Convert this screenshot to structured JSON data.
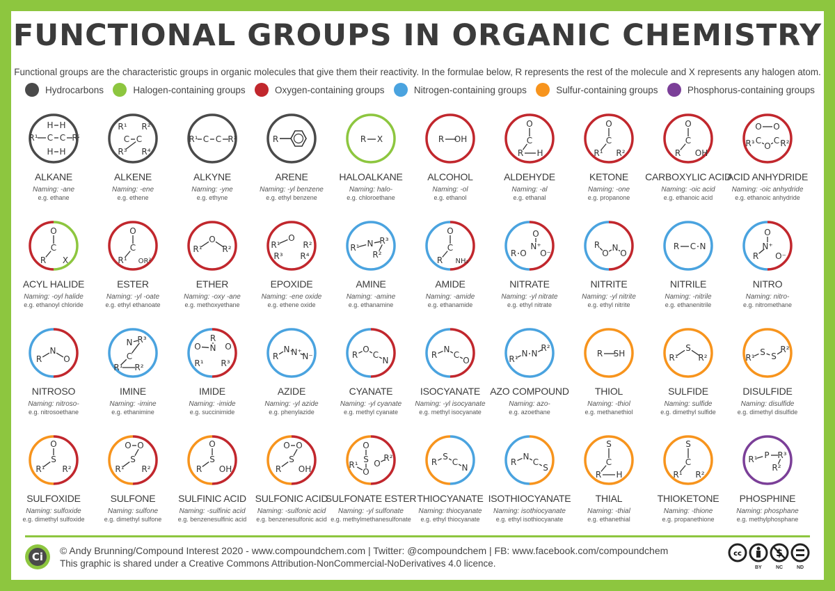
{
  "title": "FUNCTIONAL GROUPS IN ORGANIC CHEMISTRY",
  "intro": "Functional groups are the characteristic groups in organic molecules that give them their reactivity. In the formulae below, R represents the rest of the molecule and X represents any halogen atom.",
  "legend": [
    {
      "label": "Hydrocarbons",
      "color": "#4a4a4a"
    },
    {
      "label": "Halogen-containing groups",
      "color": "#8dc63f"
    },
    {
      "label": "Oxygen-containing groups",
      "color": "#c1272d"
    },
    {
      "label": "Nitrogen-containing groups",
      "color": "#4aa3df"
    },
    {
      "label": "Sulfur-containing groups",
      "color": "#f7941d"
    },
    {
      "label": "Phosphorus-containing groups",
      "color": "#7b3f98"
    }
  ],
  "groups": [
    {
      "name": "ALKANE",
      "naming": "Naming: -ane",
      "example": "e.g. ethane",
      "colors": [
        "#4a4a4a"
      ],
      "icon": "alkane-structure-icon"
    },
    {
      "name": "ALKENE",
      "naming": "Naming: -ene",
      "example": "e.g. ethene",
      "colors": [
        "#4a4a4a"
      ],
      "icon": "alkene-structure-icon"
    },
    {
      "name": "ALKYNE",
      "naming": "Naming: -yne",
      "example": "e.g. ethyne",
      "colors": [
        "#4a4a4a"
      ],
      "icon": "alkyne-structure-icon"
    },
    {
      "name": "ARENE",
      "naming": "Naming: -yl benzene",
      "example": "e.g. ethyl benzene",
      "colors": [
        "#4a4a4a"
      ],
      "icon": "arene-structure-icon"
    },
    {
      "name": "HALOALKANE",
      "naming": "Naming: halo-",
      "example": "e.g. chloroethane",
      "colors": [
        "#8dc63f"
      ],
      "icon": "haloalkane-structure-icon"
    },
    {
      "name": "ALCOHOL",
      "naming": "Naming: -ol",
      "example": "e.g. ethanol",
      "colors": [
        "#c1272d"
      ],
      "icon": "alcohol-structure-icon"
    },
    {
      "name": "ALDEHYDE",
      "naming": "Naming: -al",
      "example": "e.g. ethanal",
      "colors": [
        "#c1272d"
      ],
      "icon": "aldehyde-structure-icon"
    },
    {
      "name": "KETONE",
      "naming": "Naming: -one",
      "example": "e.g. propanone",
      "colors": [
        "#c1272d"
      ],
      "icon": "ketone-structure-icon"
    },
    {
      "name": "CARBOXYLIC ACID",
      "naming": "Naming: -oic acid",
      "example": "e.g. ethanoic acid",
      "colors": [
        "#c1272d"
      ],
      "icon": "carboxylic-acid-structure-icon"
    },
    {
      "name": "ACID ANHYDRIDE",
      "naming": "Naming: -oic anhydride",
      "example": "e.g. ethanoic anhydride",
      "colors": [
        "#c1272d"
      ],
      "icon": "acid-anhydride-structure-icon"
    },
    {
      "name": "ACYL HALIDE",
      "naming": "Naming: -oyl halide",
      "example": "e.g. ethanoyl chloride",
      "colors": [
        "#c1272d",
        "#8dc63f"
      ],
      "icon": "acyl-halide-structure-icon"
    },
    {
      "name": "ESTER",
      "naming": "Naming: -yl -oate",
      "example": "e.g. ethyl ethanoate",
      "colors": [
        "#c1272d"
      ],
      "icon": "ester-structure-icon"
    },
    {
      "name": "ETHER",
      "naming": "Naming: -oxy -ane",
      "example": "e.g. methoxyethane",
      "colors": [
        "#c1272d"
      ],
      "icon": "ether-structure-icon"
    },
    {
      "name": "EPOXIDE",
      "naming": "Naming: -ene oxide",
      "example": "e.g. ethene oxide",
      "colors": [
        "#c1272d"
      ],
      "icon": "epoxide-structure-icon"
    },
    {
      "name": "AMINE",
      "naming": "Naming: -amine",
      "example": "e.g. ethanamine",
      "colors": [
        "#4aa3df"
      ],
      "icon": "amine-structure-icon"
    },
    {
      "name": "AMIDE",
      "naming": "Naming: -amide",
      "example": "e.g. ethanamide",
      "colors": [
        "#4aa3df",
        "#c1272d"
      ],
      "icon": "amide-structure-icon"
    },
    {
      "name": "NITRATE",
      "naming": "Naming: -yl nitrate",
      "example": "e.g. ethyl nitrate",
      "colors": [
        "#4aa3df",
        "#c1272d"
      ],
      "icon": "nitrate-structure-icon"
    },
    {
      "name": "NITRITE",
      "naming": "Naming: -yl nitrite",
      "example": "e.g. ethyl nitrite",
      "colors": [
        "#4aa3df",
        "#c1272d"
      ],
      "icon": "nitrite-structure-icon"
    },
    {
      "name": "NITRILE",
      "naming": "Naming: -nitrile",
      "example": "e.g. ethanenitrile",
      "colors": [
        "#4aa3df"
      ],
      "icon": "nitrile-structure-icon"
    },
    {
      "name": "NITRO",
      "naming": "Naming: nitro-",
      "example": "e.g. nitromethane",
      "colors": [
        "#4aa3df",
        "#c1272d"
      ],
      "icon": "nitro-structure-icon"
    },
    {
      "name": "NITROSO",
      "naming": "Naming: nitroso-",
      "example": "e.g. nitrosoethane",
      "colors": [
        "#4aa3df",
        "#c1272d"
      ],
      "icon": "nitroso-structure-icon"
    },
    {
      "name": "IMINE",
      "naming": "Naming: -imine",
      "example": "e.g. ethanimine",
      "colors": [
        "#4aa3df"
      ],
      "icon": "imine-structure-icon"
    },
    {
      "name": "IMIDE",
      "naming": "Naming: -imide",
      "example": "e.g. succinimide",
      "colors": [
        "#4aa3df",
        "#c1272d"
      ],
      "icon": "imide-structure-icon"
    },
    {
      "name": "AZIDE",
      "naming": "Naming: -yl azide",
      "example": "e.g. phenylazide",
      "colors": [
        "#4aa3df"
      ],
      "icon": "azide-structure-icon"
    },
    {
      "name": "CYANATE",
      "naming": "Naming: -yl cyanate",
      "example": "e.g. methyl cyanate",
      "colors": [
        "#4aa3df",
        "#c1272d"
      ],
      "icon": "cyanate-structure-icon"
    },
    {
      "name": "ISOCYANATE",
      "naming": "Naming: -yl isocyanate",
      "example": "e.g. methyl isocyanate",
      "colors": [
        "#4aa3df",
        "#c1272d"
      ],
      "icon": "isocyanate-structure-icon"
    },
    {
      "name": "AZO COMPOUND",
      "naming": "Naming: azo-",
      "example": "e.g. azoethane",
      "colors": [
        "#4aa3df"
      ],
      "icon": "azo-compound-structure-icon"
    },
    {
      "name": "THIOL",
      "naming": "Naming: -thiol",
      "example": "e.g. methanethiol",
      "colors": [
        "#f7941d"
      ],
      "icon": "thiol-structure-icon"
    },
    {
      "name": "SULFIDE",
      "naming": "Naming: sulfide",
      "example": "e.g. dimethyl sulfide",
      "colors": [
        "#f7941d"
      ],
      "icon": "sulfide-structure-icon"
    },
    {
      "name": "DISULFIDE",
      "naming": "Naming: disulfide",
      "example": "e.g. dimethyl disulfide",
      "colors": [
        "#f7941d"
      ],
      "icon": "disulfide-structure-icon"
    },
    {
      "name": "SULFOXIDE",
      "naming": "Naming: sulfoxide",
      "example": "e.g. dimethyl sulfoxide",
      "colors": [
        "#f7941d",
        "#c1272d"
      ],
      "icon": "sulfoxide-structure-icon"
    },
    {
      "name": "SULFONE",
      "naming": "Naming: sulfone",
      "example": "e.g. dimethyl sulfone",
      "colors": [
        "#f7941d",
        "#c1272d"
      ],
      "icon": "sulfone-structure-icon"
    },
    {
      "name": "SULFINIC ACID",
      "naming": "Naming: -sulfinic acid",
      "example": "e.g. benzenesulfinic acid",
      "colors": [
        "#f7941d",
        "#c1272d"
      ],
      "icon": "sulfinic-acid-structure-icon"
    },
    {
      "name": "SULFONIC ACID",
      "naming": "Naming: -sulfonic acid",
      "example": "e.g. benzenesulfonic acid",
      "colors": [
        "#f7941d",
        "#c1272d"
      ],
      "icon": "sulfonic-acid-structure-icon"
    },
    {
      "name": "SULFONATE ESTER",
      "naming": "Naming: -yl sulfonate",
      "example": "e.g. methylmethanesulfonate",
      "colors": [
        "#f7941d",
        "#c1272d"
      ],
      "icon": "sulfonate-ester-structure-icon"
    },
    {
      "name": "THIOCYANATE",
      "naming": "Naming: thiocyanate",
      "example": "e.g. ethyl thiocyanate",
      "colors": [
        "#f7941d",
        "#4aa3df"
      ],
      "icon": "thiocyanate-structure-icon"
    },
    {
      "name": "ISOTHIOCYANATE",
      "naming": "Naming: isothiocyanate",
      "example": "e.g. ethyl isothiocyanate",
      "colors": [
        "#4aa3df",
        "#f7941d"
      ],
      "icon": "isothiocyanate-structure-icon"
    },
    {
      "name": "THIAL",
      "naming": "Naming: -thial",
      "example": "e.g. ethanethial",
      "colors": [
        "#f7941d"
      ],
      "icon": "thial-structure-icon"
    },
    {
      "name": "THIOKETONE",
      "naming": "Naming: -thione",
      "example": "e.g. propanethione",
      "colors": [
        "#f7941d"
      ],
      "icon": "thioketone-structure-icon"
    },
    {
      "name": "PHOSPHINE",
      "naming": "Naming: phosphane",
      "example": "e.g. methylphosphane",
      "colors": [
        "#7b3f98"
      ],
      "icon": "phosphine-structure-icon"
    }
  ],
  "structures": [
    [
      [
        "R¹",
        8,
        36
      ],
      [
        "C",
        32,
        36
      ],
      [
        "C",
        50,
        36
      ],
      [
        "R²",
        70,
        36
      ],
      [
        "H",
        32,
        18
      ],
      [
        "H",
        50,
        18
      ],
      [
        "H",
        32,
        56
      ],
      [
        "H",
        50,
        56
      ]
    ],
    [
      [
        "R¹",
        22,
        20
      ],
      [
        "R²",
        56,
        20
      ],
      [
        "C",
        28,
        38
      ],
      [
        "C",
        46,
        38
      ],
      [
        "R³",
        22,
        56
      ],
      [
        "R⁴",
        56,
        56
      ]
    ],
    [
      [
        "R¹",
        10,
        38
      ],
      [
        "C",
        28,
        38
      ],
      [
        "C",
        46,
        38
      ],
      [
        "R²",
        66,
        38
      ]
    ],
    [
      [
        "R",
        14,
        38
      ]
    ],
    [
      [
        "R",
        26,
        38
      ],
      [
        "X",
        50,
        38
      ]
    ],
    [
      [
        "R",
        24,
        38
      ],
      [
        "OH",
        52,
        38
      ]
    ],
    [
      [
        "O",
        37,
        16
      ],
      [
        "C",
        37,
        40
      ],
      [
        "R",
        24,
        58
      ],
      [
        "H",
        52,
        58
      ]
    ],
    [
      [
        "O",
        37,
        16
      ],
      [
        "C",
        37,
        40
      ],
      [
        "R¹",
        22,
        58
      ],
      [
        "R²",
        54,
        58
      ]
    ],
    [
      [
        "O",
        37,
        16
      ],
      [
        "C",
        37,
        40
      ],
      [
        "R",
        22,
        58
      ],
      [
        "OH",
        56,
        58
      ]
    ],
    [
      [
        "O",
        24,
        20
      ],
      [
        "O",
        50,
        20
      ],
      [
        "R¹",
        12,
        44
      ],
      [
        "C",
        24,
        40
      ],
      [
        "O",
        37,
        48
      ],
      [
        "C",
        50,
        40
      ],
      [
        "R²",
        62,
        44
      ]
    ],
    [
      [
        "O",
        37,
        16
      ],
      [
        "C",
        37,
        40
      ],
      [
        "R",
        22,
        58
      ],
      [
        "X",
        54,
        58
      ]
    ],
    [
      [
        "O",
        37,
        16
      ],
      [
        "C",
        37,
        40
      ],
      [
        "R¹",
        22,
        58
      ],
      [
        "OR²",
        54,
        58
      ]
    ],
    [
      [
        "R¹",
        16,
        42
      ],
      [
        "O",
        37,
        28
      ],
      [
        "R²",
        58,
        42
      ]
    ],
    [
      [
        "O",
        37,
        26
      ],
      [
        "R¹",
        14,
        36
      ],
      [
        "R²",
        60,
        36
      ],
      [
        "R³",
        18,
        52
      ],
      [
        "R⁴",
        56,
        52
      ]
    ],
    [
      [
        "R¹",
        14,
        40
      ],
      [
        "N",
        36,
        34
      ],
      [
        "R³",
        56,
        30
      ],
      [
        "R²",
        46,
        50
      ]
    ],
    [
      [
        "O",
        37,
        16
      ],
      [
        "C",
        37,
        40
      ],
      [
        "R",
        22,
        58
      ],
      [
        "NH₂",
        54,
        58
      ]
    ],
    [
      [
        "O",
        46,
        20
      ],
      [
        "N⁺",
        46,
        38
      ],
      [
        "R",
        14,
        48
      ],
      [
        "O",
        28,
        48
      ],
      [
        "O⁻",
        60,
        48
      ]
    ],
    [
      [
        "R",
        20,
        36
      ],
      [
        "O",
        32,
        48
      ],
      [
        "N",
        46,
        40
      ],
      [
        "O",
        58,
        48
      ]
    ],
    [
      [
        "R",
        20,
        38
      ],
      [
        "C",
        44,
        38
      ],
      [
        "N",
        58,
        38
      ]
    ],
    [
      [
        "O",
        37,
        18
      ],
      [
        "N⁺",
        37,
        38
      ],
      [
        "R",
        20,
        52
      ],
      [
        "O⁻",
        56,
        52
      ]
    ],
    [
      [
        "R",
        16,
        46
      ],
      [
        "N",
        36,
        34
      ],
      [
        "O",
        56,
        46
      ]
    ],
    [
      [
        "N",
        32,
        22
      ],
      [
        "R³",
        50,
        18
      ],
      [
        "C",
        32,
        42
      ],
      [
        "R¹",
        16,
        58
      ],
      [
        "R²",
        46,
        58
      ]
    ],
    [
      [
        "R",
        38,
        16
      ],
      [
        "N",
        38,
        30
      ],
      [
        "O",
        16,
        28
      ],
      [
        "O",
        60,
        28
      ],
      [
        "R¹",
        18,
        52
      ],
      [
        "R³",
        56,
        52
      ]
    ],
    [
      [
        "R",
        14,
        42
      ],
      [
        "N",
        30,
        32
      ],
      [
        "N⁺",
        44,
        36
      ],
      [
        "N⁻",
        60,
        42
      ]
    ],
    [
      [
        "R",
        14,
        40
      ],
      [
        "O",
        30,
        32
      ],
      [
        "C",
        44,
        40
      ],
      [
        "N",
        58,
        48
      ]
    ],
    [
      [
        "R",
        14,
        40
      ],
      [
        "N",
        32,
        32
      ],
      [
        "C",
        46,
        40
      ],
      [
        "O",
        60,
        48
      ]
    ],
    [
      [
        "R¹",
        14,
        46
      ],
      [
        "N",
        30,
        38
      ],
      [
        "N",
        44,
        38
      ],
      [
        "R²",
        60,
        30
      ]
    ],
    [
      [
        "R",
        24,
        38
      ],
      [
        "SH",
        52,
        38
      ]
    ],
    [
      [
        "R¹",
        16,
        44
      ],
      [
        "S",
        37,
        30
      ],
      [
        "R²",
        58,
        44
      ]
    ],
    [
      [
        "R¹",
        12,
        44
      ],
      [
        "S",
        30,
        36
      ],
      [
        "S",
        46,
        42
      ],
      [
        "R²",
        62,
        32
      ]
    ],
    [
      [
        "O",
        37,
        14
      ],
      [
        "S",
        37,
        36
      ],
      [
        "R¹",
        18,
        50
      ],
      [
        "R²",
        56,
        50
      ]
    ],
    [
      [
        "O",
        30,
        16
      ],
      [
        "O",
        48,
        16
      ],
      [
        "S",
        37,
        36
      ],
      [
        "R¹",
        18,
        50
      ],
      [
        "R²",
        56,
        50
      ]
    ],
    [
      [
        "O",
        37,
        14
      ],
      [
        "S",
        37,
        36
      ],
      [
        "R",
        18,
        50
      ],
      [
        "OH",
        56,
        50
      ]
    ],
    [
      [
        "O",
        30,
        16
      ],
      [
        "O",
        48,
        16
      ],
      [
        "S",
        37,
        36
      ],
      [
        "R",
        18,
        50
      ],
      [
        "OH",
        56,
        50
      ]
    ],
    [
      [
        "O",
        30,
        16
      ],
      [
        "S",
        30,
        36
      ],
      [
        "O",
        30,
        54
      ],
      [
        "R¹",
        12,
        44
      ],
      [
        "O",
        46,
        42
      ],
      [
        "R²",
        62,
        34
      ]
    ],
    [
      [
        "R",
        14,
        40
      ],
      [
        "S",
        30,
        32
      ],
      [
        "C",
        44,
        40
      ],
      [
        "N",
        58,
        48
      ]
    ],
    [
      [
        "R",
        14,
        40
      ],
      [
        "N",
        32,
        32
      ],
      [
        "C",
        46,
        40
      ],
      [
        "S",
        60,
        48
      ]
    ],
    [
      [
        "S",
        37,
        14
      ],
      [
        "C",
        37,
        40
      ],
      [
        "R",
        22,
        58
      ],
      [
        "H",
        52,
        58
      ]
    ],
    [
      [
        "S",
        37,
        14
      ],
      [
        "C",
        37,
        40
      ],
      [
        "R¹",
        22,
        58
      ],
      [
        "R²",
        54,
        58
      ]
    ],
    [
      [
        "R¹",
        16,
        36
      ],
      [
        "P",
        36,
        30
      ],
      [
        "R³",
        58,
        30
      ],
      [
        "R²",
        50,
        48
      ]
    ]
  ],
  "footer": {
    "credits": "© Andy Brunning/Compound Interest 2020 - www.compoundchem.com | Twitter: @compoundchem | FB: www.facebook.com/compoundchem",
    "license": "This graphic is shared under a Creative Commons Attribution-NonCommercial-NoDerivatives 4.0 licence.",
    "logo": "Ci",
    "cc_labels": [
      "BY",
      "NC",
      "ND"
    ]
  }
}
